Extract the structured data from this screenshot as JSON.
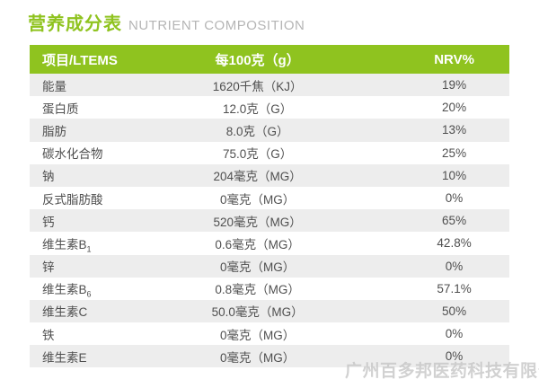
{
  "colors": {
    "accent_green": "#8fc31f",
    "row_alt_gray": "#ededed",
    "title_en_gray": "#b5b5b5",
    "row_text": "#4f4f4f"
  },
  "header": {
    "title_cn": "营养成分表",
    "title_en": "NUTRIENT COMPOSITION"
  },
  "table": {
    "columns": [
      "项目/LTEMS",
      "每100克（g）",
      "NRV%"
    ],
    "rows": [
      {
        "name": "能量",
        "value": "1620千焦（KJ）",
        "nrv": "19%"
      },
      {
        "name": "蛋白质",
        "value": "12.0克（G）",
        "nrv": "20%"
      },
      {
        "name": "脂肪",
        "value": "8.0克（G）",
        "nrv": "13%"
      },
      {
        "name": "碳水化合物",
        "value": "75.0克（G）",
        "nrv": "25%"
      },
      {
        "name": "钠",
        "value": "204毫克（MG）",
        "nrv": "10%"
      },
      {
        "name": "反式脂肪酸",
        "value": "0毫克（MG）",
        "nrv": "0%"
      },
      {
        "name": "钙",
        "value": "520毫克（MG）",
        "nrv": "65%"
      },
      {
        "name": "维生素B",
        "name_sub": "1",
        "value": "0.6毫克（MG）",
        "nrv": "42.8%"
      },
      {
        "name": "锌",
        "value": "0毫克（MG）",
        "nrv": "0%"
      },
      {
        "name": "维生素B",
        "name_sub": "6",
        "value": "0.8毫克（MG）",
        "nrv": "57.1%"
      },
      {
        "name": "维生素C",
        "value": "50.0毫克（MG）",
        "nrv": "50%"
      },
      {
        "name": "铁",
        "value": "0毫克（MG）",
        "nrv": "0%"
      },
      {
        "name": "维生素E",
        "value": "0毫克（MG）",
        "nrv": "0%"
      }
    ]
  },
  "watermark": {
    "text": "广州百多邦医药科技有限公"
  }
}
